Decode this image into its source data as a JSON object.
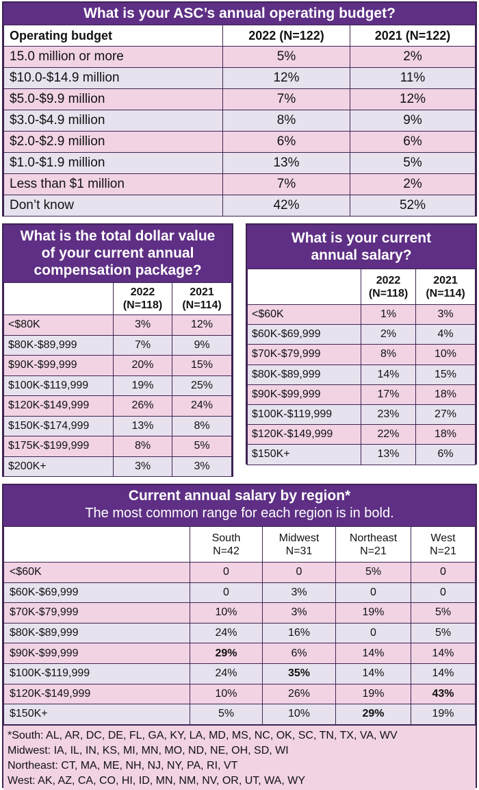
{
  "budget": {
    "title": "What is your ASC’s annual operating budget?",
    "headers": [
      "Operating budget",
      "2022 (N=122)",
      "2021 (N=122)"
    ],
    "rows": [
      [
        "15.0 million or more",
        "5%",
        "2%"
      ],
      [
        "$10.0-$14.9 million",
        "12%",
        "11%"
      ],
      [
        "$5.0-$9.9 million",
        "7%",
        "12%"
      ],
      [
        "$3.0-$4.9 million",
        "8%",
        "9%"
      ],
      [
        "$2.0-$2.9 million",
        "6%",
        "6%"
      ],
      [
        "$1.0-$1.9 million",
        "13%",
        "5%"
      ],
      [
        "Less than $1 million",
        "7%",
        "2%"
      ],
      [
        "Don’t know",
        "42%",
        "52%"
      ]
    ]
  },
  "compensation": {
    "title_lines": [
      "What is the total dollar value",
      "of your current annual",
      "compensation package?"
    ],
    "headers": [
      [
        "",
        ""
      ],
      [
        "2022",
        "(N=118)"
      ],
      [
        "2021",
        "(N=114)"
      ]
    ],
    "rows": [
      [
        "<$80K",
        "3%",
        "12%"
      ],
      [
        "$80K-$89,999",
        "7%",
        "9%"
      ],
      [
        "$90K-$99,999",
        "20%",
        "15%"
      ],
      [
        "$100K-$119,999",
        "19%",
        "25%"
      ],
      [
        "$120K-$149,999",
        "26%",
        "24%"
      ],
      [
        "$150K-$174,999",
        "13%",
        "8%"
      ],
      [
        "$175K-$199,999",
        "8%",
        "5%"
      ],
      [
        "$200K+",
        "3%",
        "3%"
      ]
    ]
  },
  "salary": {
    "title_lines": [
      "What is your current",
      "annual salary?"
    ],
    "headers": [
      [
        "",
        ""
      ],
      [
        "2022",
        "(N=118)"
      ],
      [
        "2021",
        "(N=114)"
      ]
    ],
    "rows": [
      [
        "<$60K",
        "1%",
        "3%"
      ],
      [
        "$60K-$69,999",
        "2%",
        "4%"
      ],
      [
        "$70K-$79,999",
        "8%",
        "10%"
      ],
      [
        "$80K-$89,999",
        "14%",
        "15%"
      ],
      [
        "$90K-$99,999",
        "17%",
        "18%"
      ],
      [
        "$100K-$119,999",
        "23%",
        "27%"
      ],
      [
        "$120K-$149,999",
        "22%",
        "18%"
      ],
      [
        "$150K+",
        "13%",
        "6%"
      ]
    ]
  },
  "region": {
    "title": "Current annual salary by region*",
    "subtitle": "The most common range for each region is in bold.",
    "headers": [
      [
        "",
        ""
      ],
      [
        "South",
        "N=42"
      ],
      [
        "Midwest",
        "N=31"
      ],
      [
        "Northeast",
        "N=21"
      ],
      [
        "West",
        "N=21"
      ]
    ],
    "rows": [
      [
        "<$60K",
        "0",
        "0",
        "5%",
        "0"
      ],
      [
        "$60K-$69,999",
        "0",
        "3%",
        "0",
        "0"
      ],
      [
        "$70K-$79,999",
        "10%",
        "3%",
        "19%",
        "5%"
      ],
      [
        "$80K-$89,999",
        "24%",
        "16%",
        "0",
        "5%"
      ],
      [
        "$90K-$99,999",
        "29%",
        "6%",
        "14%",
        "14%"
      ],
      [
        "$100K-$119,999",
        "24%",
        "35%",
        "14%",
        "14%"
      ],
      [
        "$120K-$149,999",
        "10%",
        "26%",
        "19%",
        "43%"
      ],
      [
        "$150K+",
        "5%",
        "10%",
        "29%",
        "19%"
      ]
    ],
    "bold_cells": [
      [
        4,
        1
      ],
      [
        5,
        2
      ],
      [
        7,
        3
      ],
      [
        6,
        4
      ]
    ],
    "footnotes": [
      "*South: AL, AR, DC, DE, FL, GA, KY, LA, MD, MS, NC, OK, SC, TN, TX, VA, WV",
      "Midwest: IA, IL, IN, KS, MI, MN, MO, ND, NE, OH, SD, WI",
      "Northeast: CT, MA, ME, NH, NJ, NY, PA, RI, VT",
      "West: AK, AZ, CA, CO, HI, ID, MN, NM, NV, OR, UT, WA, WY"
    ]
  },
  "colors": {
    "header": "#5e2f84",
    "row_pink": "#f1d3e4",
    "row_lavender": "#e7e2ee",
    "border": "#3d2352"
  }
}
